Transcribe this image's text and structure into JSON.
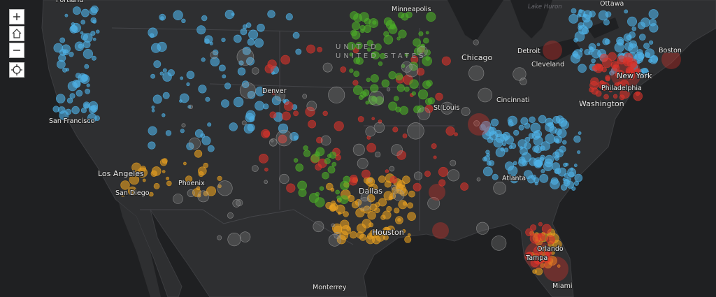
{
  "country_label": "UNITED STATES",
  "water_label": "Lake Huron",
  "cities": [
    "Portland",
    "Minneapolis",
    "Ottawa",
    "Chicago",
    "Detroit",
    "Cleveland",
    "Boston",
    "New York",
    "Philadelphia",
    "Washington",
    "Denver",
    "St Louis",
    "Cincinnati",
    "San Francisco",
    "Los Angeles",
    "San Diego",
    "Phoenix",
    "Dallas",
    "Atlanta",
    "Houston",
    "Orlando",
    "Tampa",
    "Miami",
    "Monterrey"
  ]
}
